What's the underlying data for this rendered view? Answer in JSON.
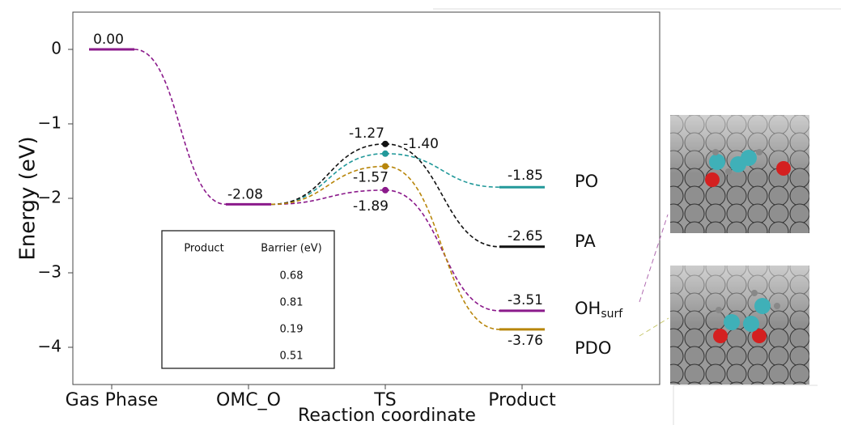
{
  "chart_data": {
    "type": "energy-diagram",
    "y_label": "Energy (eV)",
    "x_label": "Reaction coordinate",
    "categories": [
      "Gas Phase",
      "OMC_O",
      "TS",
      "Product"
    ],
    "ylim": [
      -4.5,
      0.5
    ],
    "yticks": [
      0,
      {
        "value": -1,
        "label": "−1"
      },
      {
        "value": -2,
        "label": "−2"
      },
      {
        "value": -3,
        "label": "−3"
      },
      {
        "value": -4,
        "label": "−4"
      }
    ],
    "common": {
      "color": "#8b1a8b",
      "values": [
        0.0,
        -2.08,
        null,
        null
      ],
      "value_labels": [
        "0.00",
        "-2.08",
        null,
        null
      ]
    },
    "series": [
      {
        "name": "PO",
        "color": "#22999a",
        "values": [
          null,
          null,
          -1.4,
          -1.85
        ],
        "value_labels": [
          null,
          null,
          "-1.40",
          "-1.85"
        ],
        "barrier": 0.68
      },
      {
        "name": "PA",
        "color": "#111111",
        "values": [
          null,
          null,
          -1.27,
          -2.65
        ],
        "value_labels": [
          null,
          null,
          "-1.27",
          "-2.65"
        ],
        "barrier": 0.81
      },
      {
        "name": "OH",
        "name_subscript": "surf",
        "color": "#8b1a8b",
        "values": [
          null,
          null,
          -1.89,
          -3.51
        ],
        "value_labels": [
          null,
          null,
          "-1.89",
          "-3.51"
        ],
        "barrier": 0.19
      },
      {
        "name": "PDO",
        "color": "#b8860b",
        "values": [
          null,
          null,
          -1.57,
          -3.76
        ],
        "value_labels": [
          null,
          null,
          "-1.57",
          "-3.76"
        ],
        "barrier": 0.51
      }
    ],
    "table_headers": [
      "Product",
      "Barrier (eV)"
    ]
  }
}
